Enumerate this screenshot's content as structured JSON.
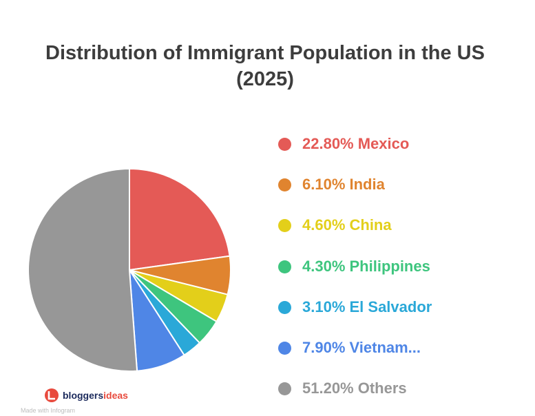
{
  "chart_data": {
    "type": "pie",
    "title_line1": "Distribution of Immigrant Population in the US",
    "title_line2": "(2025)",
    "slices": [
      {
        "label": "Mexico",
        "value": 22.8,
        "legend": "22.80% Mexico",
        "color": "#e45a56"
      },
      {
        "label": "India",
        "value": 6.1,
        "legend": "6.10% India",
        "color": "#e0842f"
      },
      {
        "label": "China",
        "value": 4.6,
        "legend": "4.60% China",
        "color": "#e3cf1a"
      },
      {
        "label": "Philippines",
        "value": 4.3,
        "legend": "4.30% Philippines",
        "color": "#3ec57e"
      },
      {
        "label": "El Salvador",
        "value": 3.1,
        "legend": "3.10% El Salvador",
        "color": "#2aa8d8"
      },
      {
        "label": "Vietnam...",
        "value": 7.9,
        "legend": "7.90% Vietnam...",
        "color": "#4f86e6"
      },
      {
        "label": "Others",
        "value": 51.2,
        "legend": "51.20% Others",
        "color": "#979797"
      }
    ],
    "legend_position": "right"
  },
  "branding": {
    "logo_text_1": "bloggers",
    "logo_text_2": "ideas",
    "logo_color_1": "#1b2a5c",
    "logo_color_2": "#e84a3d",
    "footer_note": "Made with Infogram"
  }
}
